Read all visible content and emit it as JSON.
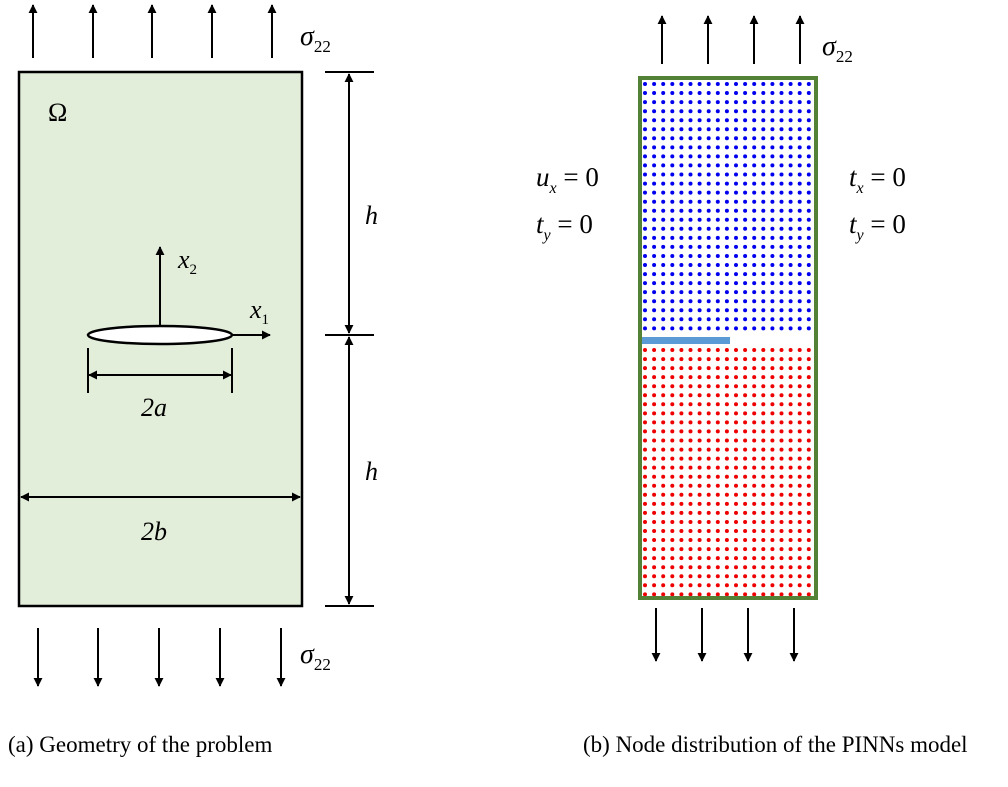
{
  "panel_a": {
    "caption": "(a) Geometry of the problem",
    "domain_label": "Ω",
    "height_label_top": "h",
    "height_label_bottom": "h",
    "crack_width_label": "2a",
    "plate_width_label": "2b",
    "axis_x2": {
      "sym": "x",
      "sub": "2"
    },
    "axis_x1": {
      "sym": "x",
      "sub": "1"
    },
    "stress_top": {
      "sym": "σ",
      "sub": "22"
    },
    "stress_bottom": {
      "sym": "σ",
      "sub": "22"
    },
    "fill_color": "#e2eed9"
  },
  "panel_b": {
    "caption": "(b) Node distribution of the PINNs model",
    "stress_top": {
      "sym": "σ",
      "sub": "22"
    },
    "left_bc": [
      {
        "sym": "u",
        "sub": "x",
        "rhs": " = 0"
      },
      {
        "sym": "t",
        "sub": "y",
        "rhs": " = 0"
      }
    ],
    "right_bc": [
      {
        "sym": "t",
        "sub": "x",
        "rhs": " = 0"
      },
      {
        "sym": "t",
        "sub": "y",
        "rhs": " = 0"
      }
    ],
    "border_color": "#538135",
    "upper_node_color": "#0000ee",
    "lower_node_color": "#ee0000",
    "crack_color": "#5b9bd5"
  }
}
